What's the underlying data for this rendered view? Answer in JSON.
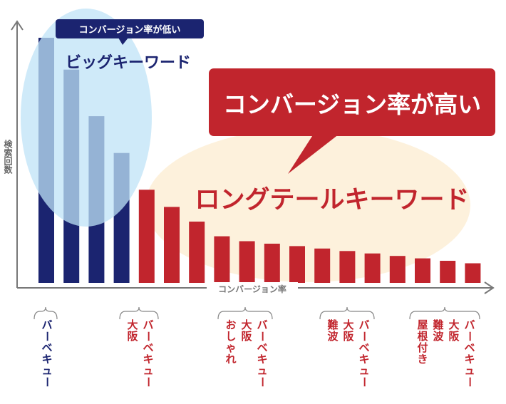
{
  "colors": {
    "big_bar": "#1b2470",
    "long_bar": "#c1252d",
    "axis": "#777777",
    "big_ellipse": "#bfe3f7",
    "long_ellipse": "#fdf0d8",
    "badge_bg": "#1b2470",
    "callout_bg": "#c1252d"
  },
  "labels": {
    "badge_low": "コンバージョン率が低い",
    "big_keyword": "ビッグキーワード",
    "callout_high": "コンバージョン率が高い",
    "long_keyword": "ロングテールキーワード"
  },
  "chart_data": {
    "type": "bar",
    "xlabel": "コンバージョン率",
    "ylabel": "検索回数",
    "ylim": [
      0,
      100
    ],
    "grid": false,
    "series": [
      {
        "name": "ビッグキーワード",
        "values": [
          100,
          87,
          68,
          53
        ]
      },
      {
        "name": "ロングテールキーワード",
        "values": [
          38,
          31,
          25,
          19,
          17,
          16,
          15,
          14,
          13,
          12,
          11,
          10,
          9,
          8
        ]
      }
    ],
    "example_groups": [
      {
        "words": [
          "バーベキュー"
        ],
        "color": "big"
      },
      {
        "words": [
          "大阪",
          "バーベキュー"
        ],
        "color": "long"
      },
      {
        "words": [
          "おしゃれ",
          "大阪",
          "バーベキュー"
        ],
        "color": "long"
      },
      {
        "words": [
          "難波",
          "大阪",
          "バーベキュー"
        ],
        "color": "long"
      },
      {
        "words": [
          "屋根付き",
          "難波",
          "大阪",
          "バーベキュー"
        ],
        "color": "long"
      }
    ]
  }
}
